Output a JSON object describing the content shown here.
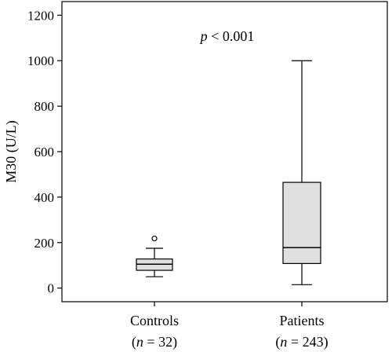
{
  "chart_data": {
    "type": "box",
    "title": "",
    "ylabel": "M30 (U/L)",
    "xlabel": "",
    "ylim": [
      -60,
      1260
    ],
    "yticks": [
      0,
      200,
      400,
      600,
      800,
      1000,
      1200
    ],
    "annotation": {
      "italic": "p",
      "text": " < 0.001"
    },
    "categories": [
      {
        "name": "Controls",
        "n_label": {
          "open": "(",
          "italic": "n",
          "text": " = 32)"
        },
        "min": 50,
        "q1": 78,
        "median": 105,
        "q3": 128,
        "max": 175,
        "outliers": [
          218
        ]
      },
      {
        "name": "Patients",
        "n_label": {
          "open": "(",
          "italic": "n",
          "text": " = 243)"
        },
        "min": 15,
        "q1": 108,
        "median": 178,
        "q3": 465,
        "max": 1000,
        "outliers": []
      }
    ],
    "box_fill": "#e0e0e0",
    "line_color": "#000000",
    "grid": false
  }
}
